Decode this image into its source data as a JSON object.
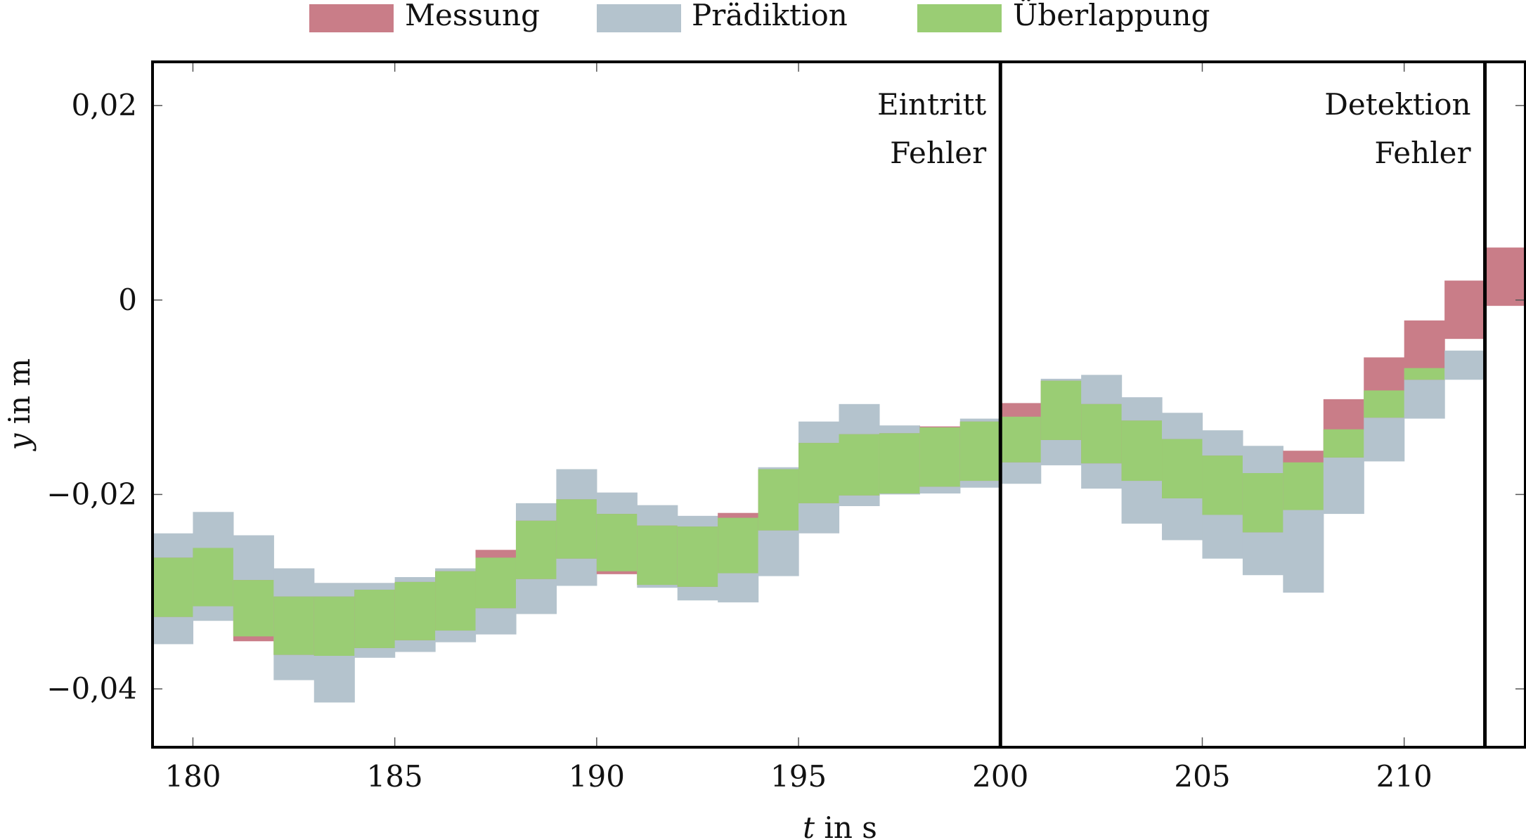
{
  "chart_data": {
    "type": "area",
    "xlabel_italic": "t",
    "xlabel_rest": " in s",
    "ylabel_italic": "y",
    "ylabel_rest": " in m",
    "xlim": [
      179,
      213
    ],
    "ylim": [
      -0.046,
      0.0245
    ],
    "xticks": [
      180,
      185,
      190,
      195,
      200,
      205,
      210
    ],
    "xtick_labels": [
      "180",
      "185",
      "190",
      "195",
      "200",
      "205",
      "210"
    ],
    "yticks": [
      0.02,
      0,
      -0.02,
      -0.04
    ],
    "ytick_labels": [
      "0,02",
      "0",
      "−0,02",
      "−0,04"
    ],
    "grid": false,
    "legend_position": "top-center",
    "series": [
      {
        "name": "Messung",
        "color": "#c97d88"
      },
      {
        "name": "Prädiktion",
        "color": "#b4c3cd"
      },
      {
        "name": "Überlappung",
        "color": "#9acd74"
      }
    ],
    "intervals": [
      {
        "t0": 179,
        "t1": 180,
        "meas": [
          -0.0326,
          -0.0265
        ],
        "pred": [
          -0.0354,
          -0.024
        ]
      },
      {
        "t0": 180,
        "t1": 181,
        "meas": [
          -0.0315,
          -0.0255
        ],
        "pred": [
          -0.033,
          -0.0218
        ]
      },
      {
        "t0": 181,
        "t1": 182,
        "meas": [
          -0.0351,
          -0.0288
        ],
        "pred": [
          -0.0346,
          -0.0242
        ]
      },
      {
        "t0": 182,
        "t1": 183,
        "meas": [
          -0.0365,
          -0.0305
        ],
        "pred": [
          -0.0391,
          -0.0276
        ]
      },
      {
        "t0": 183,
        "t1": 184,
        "meas": [
          -0.0366,
          -0.0305
        ],
        "pred": [
          -0.0414,
          -0.0291
        ]
      },
      {
        "t0": 184,
        "t1": 185,
        "meas": [
          -0.0358,
          -0.0298
        ],
        "pred": [
          -0.0368,
          -0.0291
        ]
      },
      {
        "t0": 185,
        "t1": 186,
        "meas": [
          -0.035,
          -0.029
        ],
        "pred": [
          -0.0362,
          -0.0285
        ]
      },
      {
        "t0": 186,
        "t1": 187,
        "meas": [
          -0.034,
          -0.0279
        ],
        "pred": [
          -0.0352,
          -0.0276
        ]
      },
      {
        "t0": 187,
        "t1": 188,
        "meas": [
          -0.0317,
          -0.0257
        ],
        "pred": [
          -0.0344,
          -0.0265
        ]
      },
      {
        "t0": 188,
        "t1": 189,
        "meas": [
          -0.0287,
          -0.0227
        ],
        "pred": [
          -0.0323,
          -0.0209
        ]
      },
      {
        "t0": 189,
        "t1": 190,
        "meas": [
          -0.0266,
          -0.0205
        ],
        "pred": [
          -0.0294,
          -0.0174
        ]
      },
      {
        "t0": 190,
        "t1": 191,
        "meas": [
          -0.0282,
          -0.022
        ],
        "pred": [
          -0.0279,
          -0.0198
        ]
      },
      {
        "t0": 191,
        "t1": 192,
        "meas": [
          -0.0293,
          -0.0232
        ],
        "pred": [
          -0.0296,
          -0.0211
        ]
      },
      {
        "t0": 192,
        "t1": 193,
        "meas": [
          -0.0295,
          -0.0233
        ],
        "pred": [
          -0.0309,
          -0.0222
        ]
      },
      {
        "t0": 193,
        "t1": 194,
        "meas": [
          -0.0281,
          -0.0219
        ],
        "pred": [
          -0.0311,
          -0.0224
        ]
      },
      {
        "t0": 194,
        "t1": 195,
        "meas": [
          -0.0237,
          -0.0174
        ],
        "pred": [
          -0.0284,
          -0.0172
        ]
      },
      {
        "t0": 195,
        "t1": 196,
        "meas": [
          -0.0209,
          -0.0147
        ],
        "pred": [
          -0.024,
          -0.0125
        ]
      },
      {
        "t0": 196,
        "t1": 197,
        "meas": [
          -0.0201,
          -0.0138
        ],
        "pred": [
          -0.0212,
          -0.0107
        ]
      },
      {
        "t0": 197,
        "t1": 198,
        "meas": [
          -0.0199,
          -0.0137
        ],
        "pred": [
          -0.02,
          -0.0129
        ]
      },
      {
        "t0": 198,
        "t1": 199,
        "meas": [
          -0.0192,
          -0.013
        ],
        "pred": [
          -0.0199,
          -0.0131
        ]
      },
      {
        "t0": 199,
        "t1": 200,
        "meas": [
          -0.0186,
          -0.0125
        ],
        "pred": [
          -0.0193,
          -0.0122
        ]
      },
      {
        "t0": 200,
        "t1": 201,
        "meas": [
          -0.0167,
          -0.0106
        ],
        "pred": [
          -0.0189,
          -0.012
        ]
      },
      {
        "t0": 201,
        "t1": 202,
        "meas": [
          -0.0144,
          -0.0083
        ],
        "pred": [
          -0.017,
          -0.0081
        ]
      },
      {
        "t0": 202,
        "t1": 203,
        "meas": [
          -0.0168,
          -0.0107
        ],
        "pred": [
          -0.0194,
          -0.0077
        ]
      },
      {
        "t0": 203,
        "t1": 204,
        "meas": [
          -0.0186,
          -0.0124
        ],
        "pred": [
          -0.023,
          -0.01
        ]
      },
      {
        "t0": 204,
        "t1": 205,
        "meas": [
          -0.0204,
          -0.0143
        ],
        "pred": [
          -0.0247,
          -0.0116
        ]
      },
      {
        "t0": 205,
        "t1": 206,
        "meas": [
          -0.0221,
          -0.016
        ],
        "pred": [
          -0.0266,
          -0.0134
        ]
      },
      {
        "t0": 206,
        "t1": 207,
        "meas": [
          -0.0239,
          -0.0178
        ],
        "pred": [
          -0.0283,
          -0.015
        ]
      },
      {
        "t0": 207,
        "t1": 208,
        "meas": [
          -0.0216,
          -0.0155
        ],
        "pred": [
          -0.0301,
          -0.0167
        ]
      },
      {
        "t0": 208,
        "t1": 209,
        "meas": [
          -0.0162,
          -0.0102
        ],
        "pred": [
          -0.022,
          -0.0133
        ]
      },
      {
        "t0": 209,
        "t1": 210,
        "meas": [
          -0.0121,
          -0.0059
        ],
        "pred": [
          -0.0166,
          -0.0093
        ]
      },
      {
        "t0": 210,
        "t1": 211,
        "meas": [
          -0.0082,
          -0.0021
        ],
        "pred": [
          -0.0122,
          -0.007
        ]
      },
      {
        "t0": 211,
        "t1": 212,
        "meas": [
          -0.004,
          0.002
        ],
        "pred": [
          -0.0082,
          -0.0052
        ]
      },
      {
        "t0": 212,
        "t1": 213,
        "meas": [
          -0.0006,
          0.0054
        ],
        "pred": null
      }
    ],
    "markers": [
      {
        "x": 200,
        "lines": [
          "Eintritt",
          "Fehler"
        ]
      },
      {
        "x": 212,
        "lines": [
          "Detektion",
          "Fehler"
        ]
      }
    ]
  }
}
